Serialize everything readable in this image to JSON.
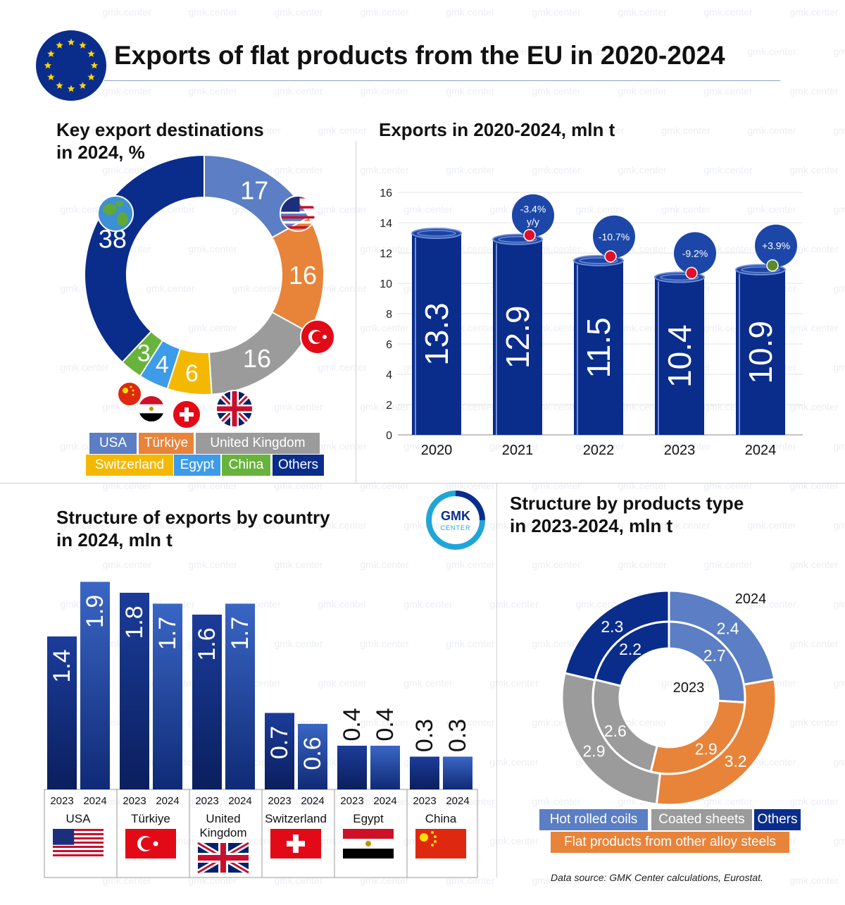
{
  "title": "Exports of flat products from the EU in 2020-2024",
  "watermark_text": "gmk.center",
  "colors": {
    "navy": "#0a2d8c",
    "usa": "#5b7ec4",
    "turkiye": "#e8833a",
    "uk": "#9b9b9b",
    "switzerland": "#f5b800",
    "egypt": "#3d9be9",
    "china": "#67b33b",
    "others": "#0a2d8c",
    "badge": "#1c47a8"
  },
  "panel1": {
    "title_line1": "Key export destinations",
    "title_line2": "in 2024, %",
    "legend": [
      "USA",
      "Türkiye",
      "United Kingdom",
      "Switzerland",
      "Egypt",
      "China",
      "Others"
    ]
  },
  "panel2": {
    "title": "Exports in 2020-2024, mln t"
  },
  "panel3": {
    "title_line1": "Structure of exports by country",
    "title_line2": "in 2024, mln t",
    "countries": [
      "USA",
      "Türkiye",
      "United\nKingdom",
      "Switzerland",
      "Egypt",
      "China"
    ],
    "years": [
      "2023",
      "2024"
    ]
  },
  "panel4": {
    "title_line1": "Structure by products type",
    "title_line2": "in 2023-2024, mln t",
    "outer_label": "2024",
    "inner_label": "2023",
    "legend": [
      "Hot rolled coils",
      "Coated sheets",
      "Others",
      "Flat products from other alloy steels"
    ]
  },
  "logo": {
    "line1": "GMK",
    "line2": "CENTER"
  },
  "source": "Data source: GMK Center calculations, Eurostat.",
  "chart_data": [
    {
      "type": "pie",
      "title": "Key export destinations in 2024, %",
      "categories": [
        "USA",
        "Türkiye",
        "United Kingdom",
        "Switzerland",
        "Egypt",
        "China",
        "Others"
      ],
      "values": [
        17,
        16,
        16,
        6,
        4,
        3,
        38
      ]
    },
    {
      "type": "bar",
      "title": "Exports in 2020-2024, mln t",
      "categories": [
        "2020",
        "2021",
        "2022",
        "2023",
        "2024"
      ],
      "values": [
        13.3,
        12.9,
        11.5,
        10.4,
        10.9
      ],
      "labels": [
        "13.3",
        "12.9",
        "11.5",
        "10.4",
        "10.9"
      ],
      "changes": [
        "",
        "-3.4%\ny/y",
        "-10.7%",
        "-9.2%",
        "+3.9%"
      ],
      "ylim": [
        0,
        16
      ],
      "yticks": [
        "0",
        "2",
        "4",
        "6",
        "8",
        "10",
        "12",
        "14",
        "16"
      ],
      "grid": true
    },
    {
      "type": "bar",
      "title": "Structure of exports by country in 2024, mln t",
      "categories": [
        "USA",
        "Türkiye",
        "United Kingdom",
        "Switzerland",
        "Egypt",
        "China"
      ],
      "series": [
        {
          "name": "2023",
          "values": [
            1.4,
            1.8,
            1.6,
            0.7,
            0.4,
            0.3
          ],
          "labels": [
            "1.4",
            "1.8",
            "1.6",
            "0.7",
            "0.4",
            "0.3"
          ]
        },
        {
          "name": "2024",
          "values": [
            1.9,
            1.7,
            1.7,
            0.6,
            0.4,
            0.3
          ],
          "labels": [
            "1.9",
            "1.7",
            "1.7",
            "0.6",
            "0.4",
            "0.3"
          ]
        }
      ]
    },
    {
      "type": "pie",
      "title": "Structure by products type in 2023-2024, mln t",
      "categories": [
        "Hot rolled coils",
        "Flat products from other alloy steels",
        "Coated sheets",
        "Others"
      ],
      "series": [
        {
          "name": "2024",
          "values": [
            2.4,
            3.2,
            2.9,
            2.3
          ],
          "labels": [
            "2.4",
            "3.2",
            "2.9",
            "2.3"
          ]
        },
        {
          "name": "2023",
          "values": [
            2.7,
            2.9,
            2.6,
            2.2
          ],
          "labels": [
            "2.7",
            "2.9",
            "2.6",
            "2.2"
          ]
        }
      ]
    }
  ]
}
